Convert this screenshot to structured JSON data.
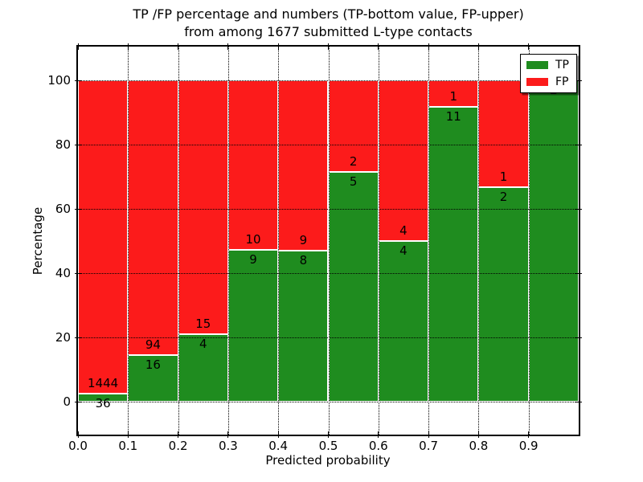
{
  "title": {
    "line1": "TP /FP percentage and numbers (TP-bottom value, FP-upper)",
    "line2": "from among 1677 submitted L-type contacts"
  },
  "chart_data": {
    "type": "bar",
    "stacked": true,
    "orientation": "vertical",
    "title_line1": "TP /FP percentage and numbers (TP-bottom value, FP-upper)",
    "title_line2": "from among 1677 submitted L-type contacts",
    "xlabel": "Predicted probability",
    "ylabel": "Percentage",
    "total_contacts": 1677,
    "bin_left_edges": [
      0.0,
      0.1,
      0.2,
      0.3,
      0.4,
      0.5,
      0.6,
      0.7,
      0.8,
      0.9
    ],
    "bin_width": 0.1,
    "series": [
      {
        "name": "TP",
        "color": "#1f8c1f",
        "counts": [
          36,
          16,
          4,
          9,
          8,
          5,
          4,
          11,
          2,
          2
        ]
      },
      {
        "name": "FP",
        "color": "#fc1b1b",
        "counts": [
          1444,
          94,
          15,
          10,
          9,
          2,
          4,
          1,
          1,
          0
        ]
      }
    ],
    "tp_percent_heights": [
      2.43,
      14.55,
      21.05,
      47.37,
      47.06,
      71.43,
      50.0,
      91.67,
      66.67,
      100.0
    ],
    "bars_sum_to_percent": 100,
    "x_tick_labels": [
      "0.0",
      "0.1",
      "0.2",
      "0.3",
      "0.4",
      "0.5",
      "0.6",
      "0.7",
      "0.8",
      "0.9"
    ],
    "x_tick_values": [
      0.0,
      0.1,
      0.2,
      0.3,
      0.4,
      0.5,
      0.6,
      0.7,
      0.8,
      0.9
    ],
    "y_tick_labels": [
      "0",
      "20",
      "40",
      "60",
      "80",
      "100"
    ],
    "y_tick_values": [
      0,
      20,
      40,
      60,
      80,
      100
    ],
    "xlim": [
      0.0,
      1.0
    ],
    "ylim": [
      -10.25,
      110.5
    ],
    "grid": "dotted",
    "bar_edge_color": "#ffffff",
    "legend": {
      "position": "upper right",
      "entries": [
        {
          "label": "TP",
          "color": "#1f8c1f"
        },
        {
          "label": "FP",
          "color": "#fc1b1b"
        }
      ]
    }
  }
}
